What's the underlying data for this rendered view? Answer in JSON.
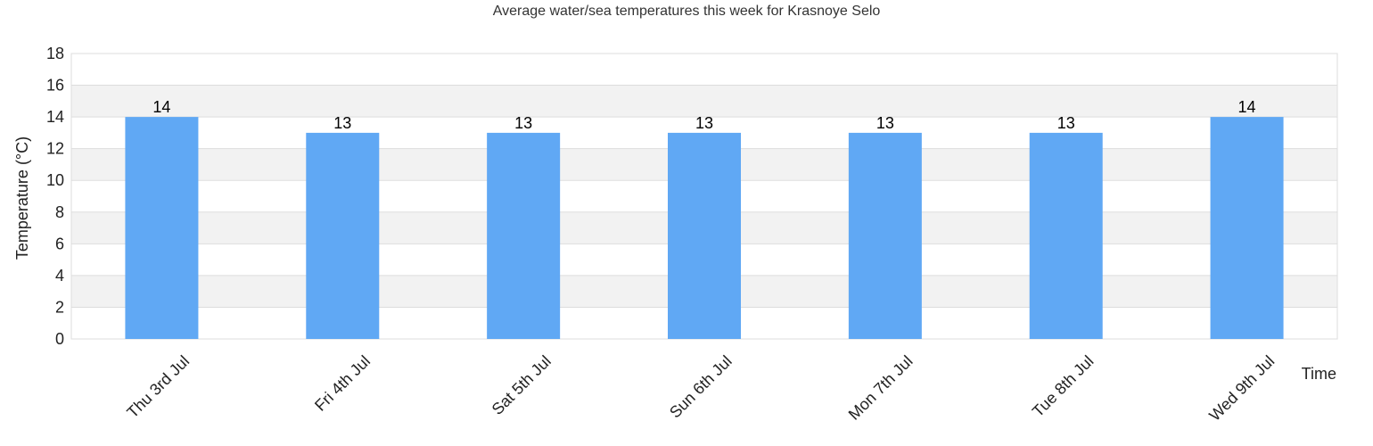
{
  "chart_data": {
    "type": "bar",
    "title": "Average water/sea temperatures this week for Krasnoye Selo",
    "xlabel": "Time",
    "ylabel": "Temperature (°C)",
    "categories": [
      "Thu 3rd Jul",
      "Fri 4th Jul",
      "Sat 5th Jul",
      "Sun 6th Jul",
      "Mon 7th Jul",
      "Tue 8th Jul",
      "Wed 9th Jul"
    ],
    "values": [
      14,
      13,
      13,
      13,
      13,
      13,
      14
    ],
    "data_labels": [
      "14",
      "13",
      "13",
      "13",
      "13",
      "13",
      "14"
    ],
    "ylim": [
      0,
      18
    ],
    "yticks": [
      "0",
      "2",
      "4",
      "6",
      "8",
      "10",
      "12",
      "14",
      "16",
      "18"
    ],
    "grid": true,
    "legend": "none",
    "colors": {
      "bar": "#60a8f4",
      "band": "#f2f2f2",
      "grid": "#dddddd",
      "frame": "#dddddd"
    }
  }
}
